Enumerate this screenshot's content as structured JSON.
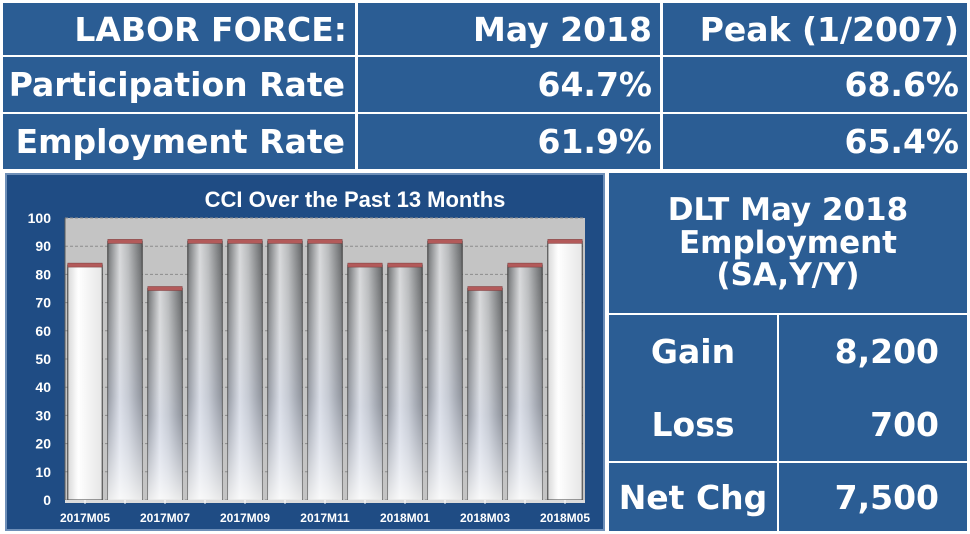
{
  "labor_force": {
    "header": [
      "LABOR FORCE:",
      "May 2018",
      "Peak (1/2007)"
    ],
    "rows": [
      {
        "label": "Participation Rate",
        "current": "64.7%",
        "peak": "68.6%"
      },
      {
        "label": "Employment Rate",
        "current": "61.9%",
        "peak": "65.4%"
      }
    ]
  },
  "dlt": {
    "title_lines": [
      "DLT May 2018",
      "Employment",
      "(SA,Y/Y)"
    ],
    "rows": [
      {
        "label": "Gain",
        "value": "8,200"
      },
      {
        "label": "Loss",
        "value": "700"
      },
      {
        "label": "Net Chg",
        "value": "7,500"
      }
    ]
  },
  "chart_data": {
    "type": "bar",
    "title": "CCI Over the Past 13 Months",
    "categories": [
      "2017M05",
      "2017M06",
      "2017M07",
      "2017M08",
      "2017M09",
      "2017M10",
      "2017M11",
      "2017M12",
      "2018M01",
      "2018M02",
      "2018M03",
      "2018M04",
      "2018M05"
    ],
    "tick_labels": [
      "2017M05",
      "2017M07",
      "2017M09",
      "2017M11",
      "2018M01",
      "2018M03",
      "2018M05"
    ],
    "values": [
      83.3,
      91.7,
      75,
      91.7,
      91.7,
      91.7,
      91.7,
      83.3,
      83.3,
      91.7,
      75,
      83.3,
      91.7
    ],
    "ylim": [
      0,
      100
    ],
    "yticks": [
      0,
      10,
      20,
      30,
      40,
      50,
      60,
      70,
      80,
      90,
      100
    ],
    "highlighted": [
      "2017M05",
      "2018M05"
    ],
    "grid": true,
    "colors": {
      "bar": "#a8aaac",
      "bar_highlight": "#ffffff",
      "bar_cap": "#b35a5a",
      "plot_bg": "#c9c9c9"
    }
  }
}
